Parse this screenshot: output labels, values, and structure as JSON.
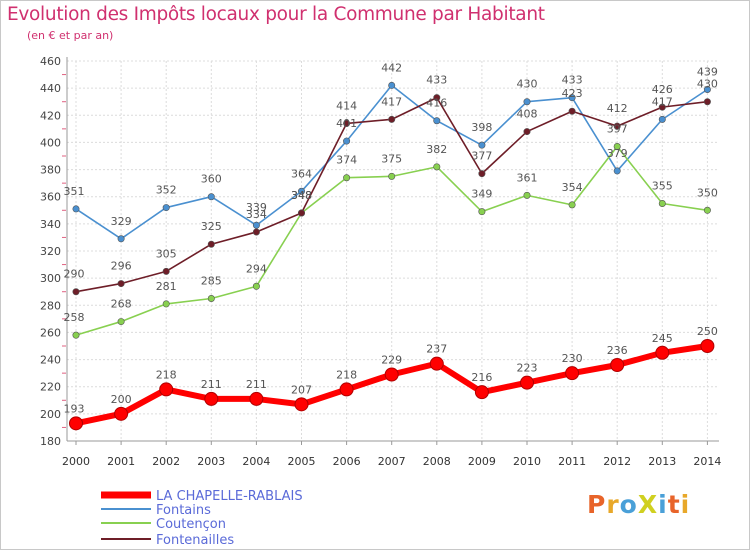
{
  "title": "Evolution des Impôts locaux pour la Commune par Habitant",
  "subtitle": "(en € et par an)",
  "brand": "ProXiti",
  "chart_data": {
    "type": "line",
    "categories": [
      "2000",
      "2001",
      "2002",
      "2003",
      "2004",
      "2005",
      "2006",
      "2007",
      "2008",
      "2009",
      "2010",
      "2011",
      "2012",
      "2013",
      "2014"
    ],
    "y_ticks": [
      180,
      200,
      220,
      240,
      260,
      280,
      300,
      320,
      340,
      360,
      380,
      400,
      420,
      440,
      460
    ],
    "ylim": [
      180,
      460
    ],
    "grid": true,
    "legend_position": "bottom-left",
    "series": [
      {
        "name": "LA CHAPELLE-RABLAIS",
        "color": "#ff0000",
        "values": [
          193,
          200,
          218,
          211,
          211,
          207,
          218,
          229,
          237,
          216,
          223,
          230,
          236,
          245,
          250
        ]
      },
      {
        "name": "Fontains",
        "color": "#4a90d0",
        "values": [
          351,
          329,
          352,
          360,
          339,
          364,
          401,
          442,
          416,
          398,
          430,
          433,
          379,
          417,
          439
        ]
      },
      {
        "name": "Coutençon",
        "color": "#88d050",
        "values": [
          258,
          268,
          281,
          285,
          294,
          348,
          374,
          375,
          382,
          349,
          361,
          354,
          397,
          355,
          350
        ]
      },
      {
        "name": "Fontenailles",
        "color": "#6e1e28",
        "values": [
          290,
          296,
          305,
          325,
          334,
          348,
          414,
          417,
          433,
          377,
          408,
          423,
          412,
          426,
          430
        ]
      }
    ]
  }
}
